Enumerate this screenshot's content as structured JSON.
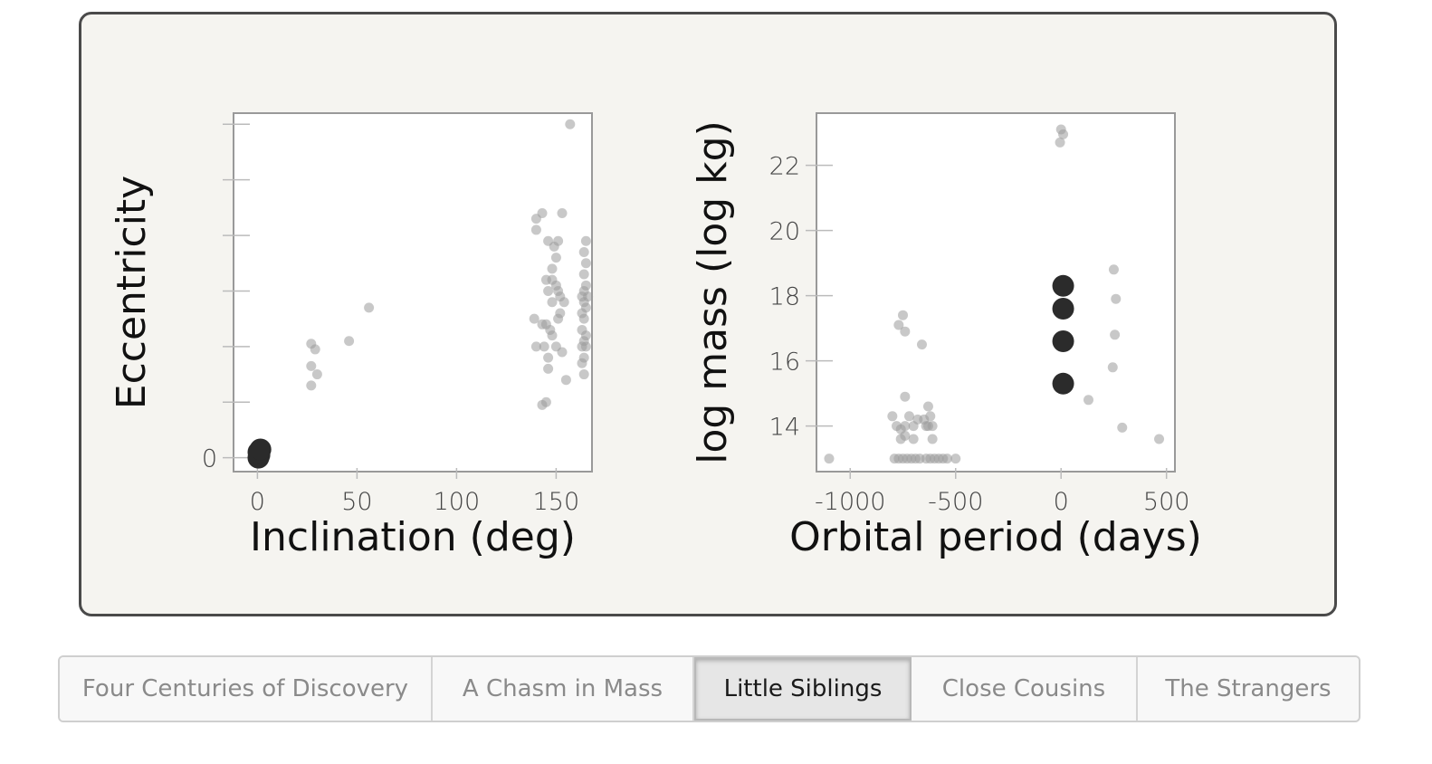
{
  "tabs": [
    {
      "label": "Four Centuries of Discovery",
      "active": false
    },
    {
      "label": "A Chasm in Mass",
      "active": false
    },
    {
      "label": "Little Siblings",
      "active": true
    },
    {
      "label": "Close Cousins",
      "active": false
    },
    {
      "label": "The Strangers",
      "active": false
    }
  ],
  "colors": {
    "panel_bg": "#f5f4f0",
    "panel_border": "#4a4a4a",
    "plot_bg": "#ffffff",
    "point_faded": "#9a9a9a",
    "point_highlight": "#2b2b2b"
  },
  "chart_data": [
    {
      "type": "scatter",
      "xlabel": "Inclination (deg)",
      "ylabel": "Eccentricity",
      "xlim": [
        -12,
        168
      ],
      "ylim": [
        -0.025,
        0.62
      ],
      "xticks": [
        0,
        50,
        100,
        150
      ],
      "yticks": [
        0,
        0.1,
        0.2,
        0.3,
        0.4,
        0.5,
        0.6
      ],
      "ytick_labels": [
        "0",
        "",
        "",
        "",
        "",
        "",
        ""
      ],
      "series": [
        {
          "role": "context",
          "points": [
            [
              27,
              0.205
            ],
            [
              29,
              0.195
            ],
            [
              27,
              0.165
            ],
            [
              30,
              0.15
            ],
            [
              27,
              0.13
            ],
            [
              46,
              0.21
            ],
            [
              56,
              0.27
            ],
            [
              143,
              0.44
            ],
            [
              140,
              0.43
            ],
            [
              153,
              0.44
            ],
            [
              146,
              0.39
            ],
            [
              140,
              0.41
            ],
            [
              149,
              0.38
            ],
            [
              151,
              0.39
            ],
            [
              150,
              0.36
            ],
            [
              148,
              0.34
            ],
            [
              145,
              0.32
            ],
            [
              148,
              0.32
            ],
            [
              151,
              0.3
            ],
            [
              152,
              0.29
            ],
            [
              150,
              0.31
            ],
            [
              146,
              0.3
            ],
            [
              148,
              0.28
            ],
            [
              154,
              0.28
            ],
            [
              152,
              0.26
            ],
            [
              151,
              0.25
            ],
            [
              139,
              0.25
            ],
            [
              145,
              0.24
            ],
            [
              147,
              0.23
            ],
            [
              143,
              0.24
            ],
            [
              148,
              0.22
            ],
            [
              140,
              0.2
            ],
            [
              150,
              0.2
            ],
            [
              144,
              0.2
            ],
            [
              146,
              0.18
            ],
            [
              153,
              0.19
            ],
            [
              146,
              0.16
            ],
            [
              155,
              0.14
            ],
            [
              143,
              0.095
            ],
            [
              145,
              0.1
            ],
            [
              157,
              0.6
            ],
            [
              165,
              0.39
            ],
            [
              164,
              0.37
            ],
            [
              165,
              0.35
            ],
            [
              164,
              0.33
            ],
            [
              165,
              0.31
            ],
            [
              164,
              0.3
            ],
            [
              163,
              0.29
            ],
            [
              166,
              0.29
            ],
            [
              164,
              0.28
            ],
            [
              163,
              0.26
            ],
            [
              165,
              0.27
            ],
            [
              164,
              0.25
            ],
            [
              163,
              0.23
            ],
            [
              165,
              0.22
            ],
            [
              164,
              0.21
            ],
            [
              163,
              0.2
            ],
            [
              165,
              0.2
            ],
            [
              164,
              0.18
            ],
            [
              163,
              0.17
            ],
            [
              164,
              0.15
            ]
          ]
        },
        {
          "role": "highlight",
          "points": [
            [
              0.5,
              0.0
            ],
            [
              1.0,
              0.005
            ],
            [
              0.5,
              0.01
            ],
            [
              1.5,
              0.015
            ]
          ]
        }
      ]
    },
    {
      "type": "scatter",
      "xlabel": "Orbital period (days)",
      "ylabel": "log mass (log kg)",
      "xlim": [
        -1160,
        540
      ],
      "ylim": [
        12.6,
        23.6
      ],
      "xticks": [
        -1000,
        -500,
        0,
        500
      ],
      "yticks": [
        14,
        16,
        18,
        20,
        22
      ],
      "series": [
        {
          "role": "context",
          "points": [
            [
              -1100,
              13.0
            ],
            [
              -790,
              13.0
            ],
            [
              -770,
              13.0
            ],
            [
              -750,
              13.0
            ],
            [
              -730,
              13.0
            ],
            [
              -710,
              13.0
            ],
            [
              -690,
              13.0
            ],
            [
              -670,
              13.0
            ],
            [
              -640,
              13.0
            ],
            [
              -620,
              13.0
            ],
            [
              -600,
              13.0
            ],
            [
              -580,
              13.0
            ],
            [
              -560,
              13.0
            ],
            [
              -540,
              13.0
            ],
            [
              -500,
              13.0
            ],
            [
              -800,
              14.3
            ],
            [
              -780,
              14.0
            ],
            [
              -760,
              13.9
            ],
            [
              -740,
              14.0
            ],
            [
              -720,
              14.3
            ],
            [
              -700,
              14.0
            ],
            [
              -680,
              14.2
            ],
            [
              -760,
              13.6
            ],
            [
              -700,
              13.6
            ],
            [
              -740,
              13.7
            ],
            [
              -650,
              14.2
            ],
            [
              -630,
              14.0
            ],
            [
              -620,
              14.3
            ],
            [
              -610,
              14.0
            ],
            [
              -640,
              14.0
            ],
            [
              -630,
              14.6
            ],
            [
              -610,
              13.6
            ],
            [
              -740,
              14.9
            ],
            [
              -770,
              17.1
            ],
            [
              -750,
              17.4
            ],
            [
              -740,
              16.9
            ],
            [
              -660,
              16.5
            ],
            [
              0,
              23.1
            ],
            [
              10,
              22.95
            ],
            [
              -5,
              22.7
            ],
            [
              130,
              14.8
            ],
            [
              250,
              18.8
            ],
            [
              260,
              17.9
            ],
            [
              255,
              16.8
            ],
            [
              245,
              15.8
            ],
            [
              290,
              13.95
            ],
            [
              465,
              13.6
            ]
          ]
        },
        {
          "role": "highlight",
          "points": [
            [
              10,
              18.3
            ],
            [
              10,
              17.6
            ],
            [
              10,
              16.6
            ],
            [
              10,
              15.3
            ]
          ]
        }
      ]
    }
  ]
}
